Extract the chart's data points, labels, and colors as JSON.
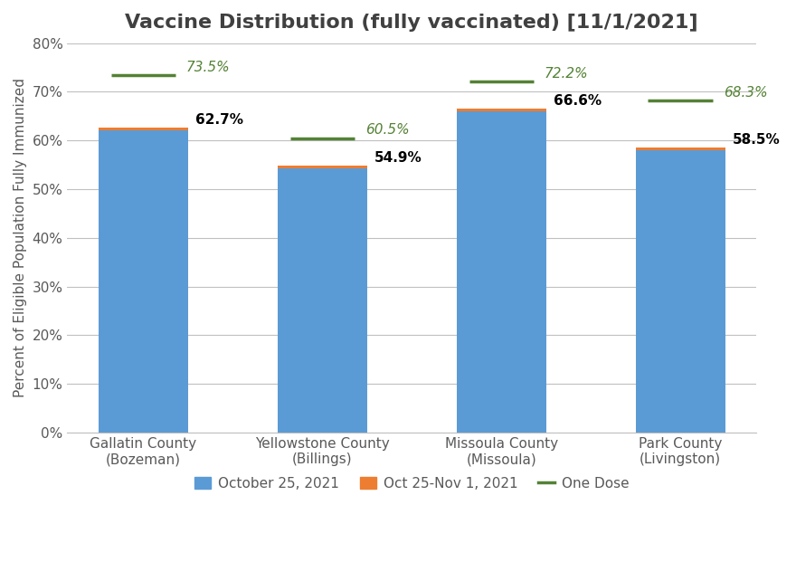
{
  "title": "Vaccine Distribution (fully vaccinated) [11/1/2021]",
  "ylabel": "Percent of Eligible Population Fully Immunized",
  "categories": [
    "Gallatin County\n(Bozeman)",
    "Yellowstone County\n(Billings)",
    "Missoula County\n(Missoula)",
    "Park County\n(Livingston)"
  ],
  "blue_values": [
    62.1,
    54.3,
    66.0,
    58.0
  ],
  "orange_increments": [
    0.6,
    0.6,
    0.6,
    0.5
  ],
  "total_values": [
    62.7,
    54.9,
    66.6,
    58.5
  ],
  "one_dose_values": [
    73.5,
    60.5,
    72.2,
    68.3
  ],
  "bar_labels": [
    "62.7%",
    "54.9%",
    "66.6%",
    "58.5%"
  ],
  "one_dose_labels": [
    "73.5%",
    "60.5%",
    "72.2%",
    "68.3%"
  ],
  "blue_color": "#5B9BD5",
  "orange_color": "#ED7D31",
  "green_color": "#548235",
  "ylim": [
    0,
    80
  ],
  "yticks": [
    0,
    10,
    20,
    30,
    40,
    50,
    60,
    70,
    80
  ],
  "ytick_labels": [
    "0%",
    "10%",
    "20%",
    "30%",
    "40%",
    "50%",
    "60%",
    "70%",
    "80%"
  ],
  "legend_labels": [
    "October 25, 2021",
    "Oct 25-Nov 1, 2021",
    "One Dose"
  ],
  "title_fontsize": 16,
  "label_fontsize": 11,
  "tick_fontsize": 11,
  "bar_width": 0.5,
  "background_color": "#ffffff",
  "grid_color": "#C0C0C0",
  "text_color": "#595959",
  "title_color": "#404040"
}
